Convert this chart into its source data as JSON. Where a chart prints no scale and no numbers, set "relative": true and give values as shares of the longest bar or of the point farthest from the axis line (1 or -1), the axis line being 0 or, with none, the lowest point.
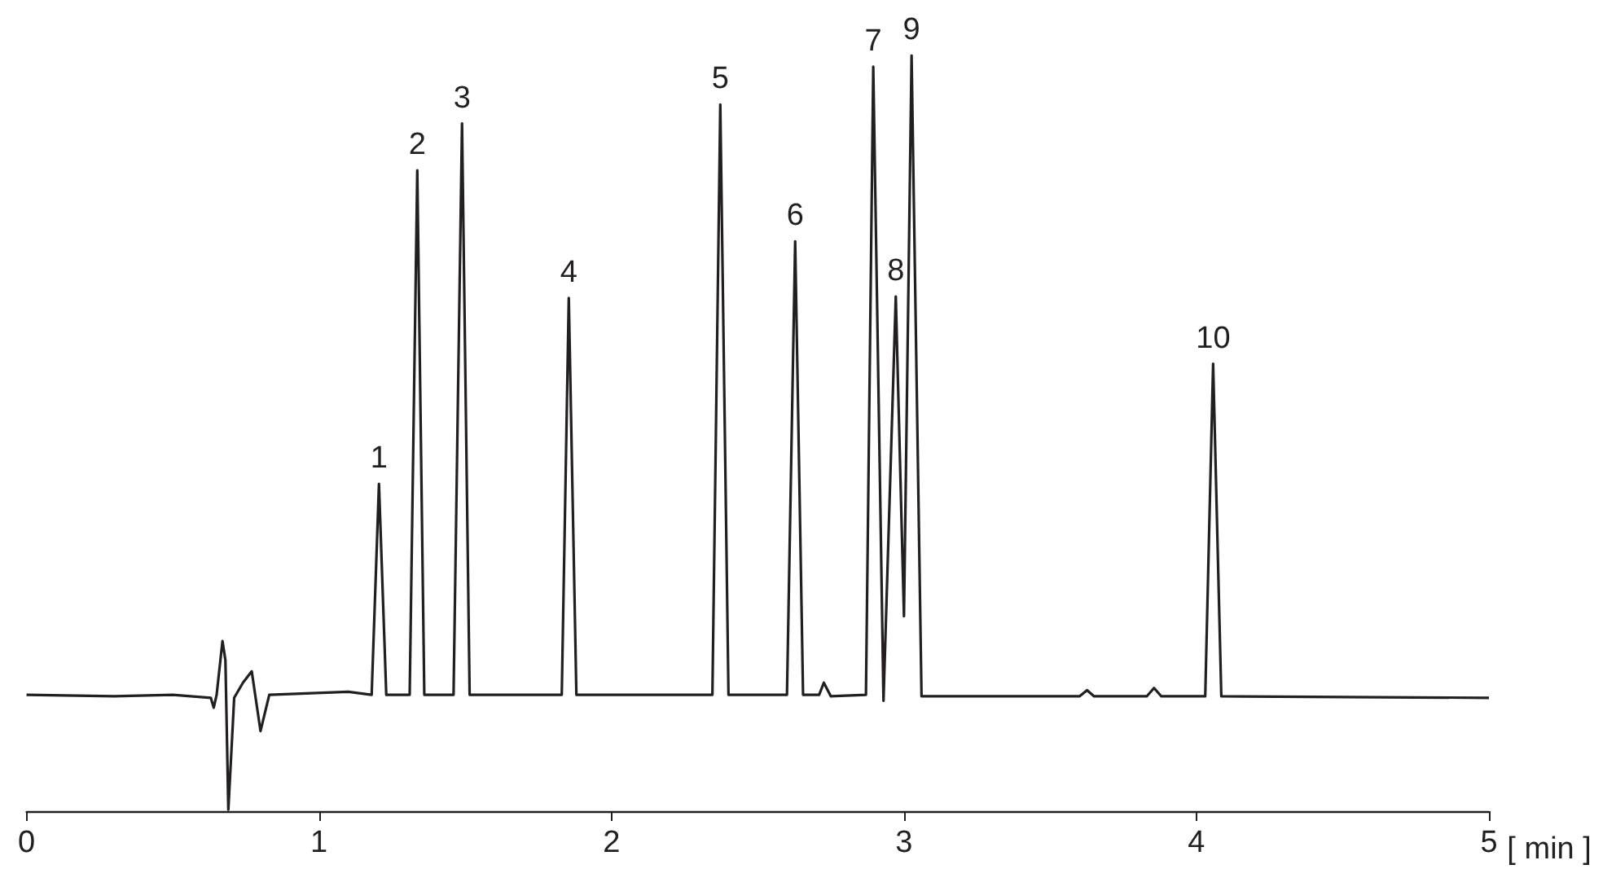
{
  "chart_data": {
    "type": "line",
    "relative": true,
    "xlabel": "[ min ]",
    "xlim": [
      0,
      5
    ],
    "xticks": [
      0,
      1,
      2,
      3,
      4,
      5
    ],
    "grid": false,
    "marker": "none",
    "line_style": "solid",
    "series": [
      {
        "color": "#231f20",
        "x": [
          0,
          0.3,
          0.5,
          0.63,
          0.64,
          0.65,
          0.67,
          0.68,
          0.69,
          0.71,
          0.74,
          0.77,
          0.8,
          0.83,
          1.1,
          1.18,
          1.205,
          1.23,
          1.31,
          1.336,
          1.36,
          1.46,
          1.489,
          1.515,
          1.83,
          1.854,
          1.88,
          2.345,
          2.372,
          2.4,
          2.6,
          2.628,
          2.655,
          2.71,
          2.726,
          2.75,
          2.87,
          2.895,
          2.93,
          2.972,
          3.0,
          3.026,
          3.06,
          3.6,
          3.626,
          3.65,
          3.83,
          3.855,
          3.88,
          4.03,
          4.057,
          4.085,
          5.0
        ],
        "values": [
          0.154,
          0.152,
          0.154,
          0.15,
          0.137,
          0.154,
          0.225,
          0.2,
          0.002,
          0.15,
          0.17,
          0.185,
          0.106,
          0.154,
          0.158,
          0.154,
          0.433,
          0.154,
          0.154,
          0.848,
          0.154,
          0.154,
          0.91,
          0.154,
          0.154,
          0.679,
          0.154,
          0.154,
          0.935,
          0.154,
          0.154,
          0.754,
          0.154,
          0.154,
          0.17,
          0.152,
          0.154,
          0.985,
          0.146,
          0.681,
          0.258,
          1.0,
          0.152,
          0.152,
          0.16,
          0.152,
          0.152,
          0.163,
          0.152,
          0.152,
          0.592,
          0.152,
          0.15
        ]
      }
    ],
    "annotations": [
      {
        "text": "1",
        "x": 1.205,
        "y": 0.433
      },
      {
        "text": "2",
        "x": 1.336,
        "y": 0.848
      },
      {
        "text": "3",
        "x": 1.489,
        "y": 0.91
      },
      {
        "text": "4",
        "x": 1.854,
        "y": 0.679
      },
      {
        "text": "5",
        "x": 2.372,
        "y": 0.935
      },
      {
        "text": "6",
        "x": 2.628,
        "y": 0.754
      },
      {
        "text": "7",
        "x": 2.895,
        "y": 0.985
      },
      {
        "text": "8",
        "x": 2.972,
        "y": 0.681
      },
      {
        "text": "9",
        "x": 3.026,
        "y": 1.0
      },
      {
        "text": "10",
        "x": 4.057,
        "y": 0.592
      }
    ]
  }
}
